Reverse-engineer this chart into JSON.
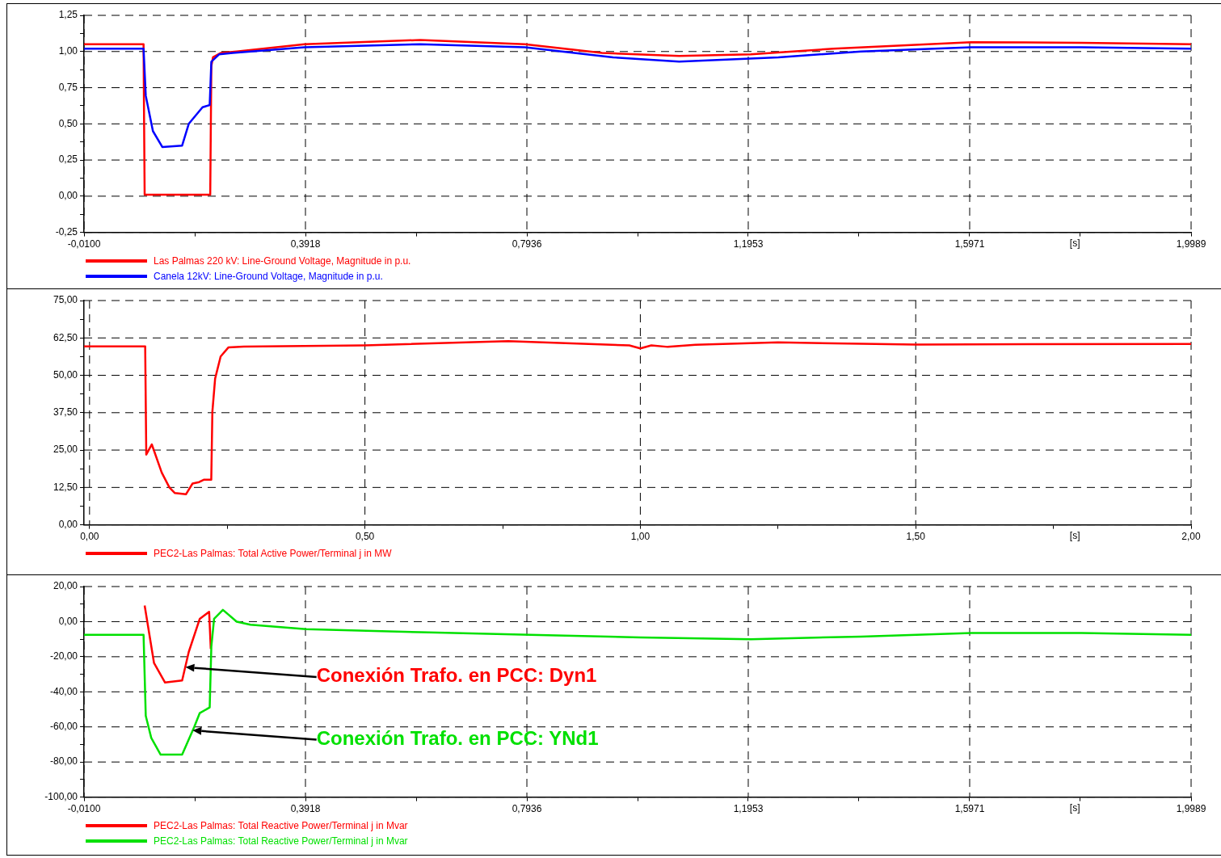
{
  "chart_data": [
    {
      "type": "line",
      "xlabel": "[s]",
      "xlim": [
        -0.01,
        1.9989
      ],
      "xticks": [
        {
          "value": -0.01,
          "label": "-0,0100"
        },
        {
          "value": 0.1909,
          "label": null
        },
        {
          "value": 0.3918,
          "label": "0,3918"
        },
        {
          "value": 0.5927,
          "label": null
        },
        {
          "value": 0.7936,
          "label": "0,7936"
        },
        {
          "value": 0.9945,
          "label": null
        },
        {
          "value": 1.1953,
          "label": "1,1953"
        },
        {
          "value": 1.3962,
          "label": null
        },
        {
          "value": 1.5971,
          "label": "1,5971"
        },
        {
          "value": 1.798,
          "label": null
        },
        {
          "value": 1.9989,
          "label": "1,9989"
        }
      ],
      "ylim": [
        -0.25,
        1.25
      ],
      "yticks": [
        {
          "value": -0.25,
          "label": "-0,25"
        },
        {
          "value": -0.125,
          "label": null
        },
        {
          "value": 0,
          "label": "0,00"
        },
        {
          "value": 0.125,
          "label": null
        },
        {
          "value": 0.25,
          "label": "0,25"
        },
        {
          "value": 0.375,
          "label": null
        },
        {
          "value": 0.5,
          "label": "0,50"
        },
        {
          "value": 0.625,
          "label": null
        },
        {
          "value": 0.75,
          "label": "0,75"
        },
        {
          "value": 0.875,
          "label": null
        },
        {
          "value": 1,
          "label": "1,00"
        },
        {
          "value": 1.125,
          "label": null
        },
        {
          "value": 1.25,
          "label": "1,25"
        }
      ],
      "grid": true,
      "legend": "bottom left",
      "marker": "none",
      "line_style": "solid",
      "series": [
        {
          "name": "Las Palmas 220 kV: Line-Ground Voltage, Magnitude in p.u.",
          "color": "#ff0000",
          "x": [
            -0.01,
            0.098,
            0.099,
            0.1,
            0.219,
            0.221,
            0.224,
            0.238,
            0.267,
            0.39,
            0.6,
            0.79,
            0.93,
            1.07,
            1.2,
            1.35,
            1.6,
            1.8,
            1.9989
          ],
          "values": [
            1.05,
            1.05,
            0.5,
            0.01,
            0.01,
            0.9,
            0.96,
            0.99,
            1.0,
            1.05,
            1.08,
            1.05,
            0.99,
            0.97,
            0.98,
            1.02,
            1.065,
            1.06,
            1.05
          ]
        },
        {
          "name": "Canela 12kV: Line-Ground Voltage, Magnitude in p.u.",
          "color": "#0000ff",
          "x": [
            -0.01,
            0.098,
            0.102,
            0.115,
            0.132,
            0.168,
            0.18,
            0.205,
            0.218,
            0.221,
            0.235,
            0.26,
            0.39,
            0.6,
            0.79,
            0.95,
            1.07,
            1.25,
            1.4,
            1.6,
            1.8,
            1.9989
          ],
          "values": [
            1.02,
            1.02,
            0.695,
            0.45,
            0.34,
            0.35,
            0.5,
            0.615,
            0.63,
            0.93,
            0.98,
            0.99,
            1.03,
            1.05,
            1.03,
            0.96,
            0.93,
            0.96,
            1.0,
            1.03,
            1.03,
            1.02
          ]
        }
      ]
    },
    {
      "type": "line",
      "xlabel": "[s]",
      "xlim": [
        -0.01,
        2.0
      ],
      "xticks": [
        {
          "value": 0,
          "label": "0,00"
        },
        {
          "value": 0.25,
          "label": null
        },
        {
          "value": 0.5,
          "label": "0,50"
        },
        {
          "value": 0.75,
          "label": null
        },
        {
          "value": 1,
          "label": "1,00"
        },
        {
          "value": 1.25,
          "label": null
        },
        {
          "value": 1.5,
          "label": "1,50"
        },
        {
          "value": 1.75,
          "label": null
        },
        {
          "value": 2,
          "label": "2,00"
        }
      ],
      "ylim": [
        0,
        75
      ],
      "yticks": [
        {
          "value": 0,
          "label": "0,00"
        },
        {
          "value": 6.25,
          "label": null
        },
        {
          "value": 12.5,
          "label": "12,50"
        },
        {
          "value": 18.75,
          "label": null
        },
        {
          "value": 25,
          "label": "25,00"
        },
        {
          "value": 31.25,
          "label": null
        },
        {
          "value": 37.5,
          "label": "37,50"
        },
        {
          "value": 43.75,
          "label": null
        },
        {
          "value": 50,
          "label": "50,00"
        },
        {
          "value": 56.25,
          "label": null
        },
        {
          "value": 62.5,
          "label": "62,50"
        },
        {
          "value": 68.75,
          "label": null
        },
        {
          "value": 75,
          "label": "75,00"
        }
      ],
      "grid": true,
      "legend": "bottom left",
      "marker": "none",
      "line_style": "solid",
      "series": [
        {
          "name": "PEC2-Las Palmas: Total Active Power/Terminal j in MW",
          "color": "#ff0000",
          "x": [
            -0.01,
            0.101,
            0.103,
            0.113,
            0.131,
            0.145,
            0.155,
            0.175,
            0.187,
            0.199,
            0.208,
            0.221,
            0.223,
            0.228,
            0.238,
            0.252,
            0.28,
            0.5,
            0.76,
            0.98,
            1.0,
            1.02,
            1.05,
            1.1,
            1.25,
            1.5,
            2.0
          ],
          "values": [
            59.7,
            59.7,
            23.5,
            26.9,
            17.5,
            12.5,
            10.6,
            10.2,
            13.8,
            14.3,
            15.1,
            15.1,
            37.8,
            48.9,
            56.3,
            59.3,
            59.6,
            60,
            61.4,
            60,
            59,
            60,
            59.5,
            60.2,
            61,
            60.3,
            60.5
          ]
        }
      ]
    },
    {
      "type": "line",
      "xlabel": "[s]",
      "xlim": [
        -0.01,
        1.9989
      ],
      "xticks": [
        {
          "value": -0.01,
          "label": "-0,0100"
        },
        {
          "value": 0.1909,
          "label": null
        },
        {
          "value": 0.3918,
          "label": "0,3918"
        },
        {
          "value": 0.5927,
          "label": null
        },
        {
          "value": 0.7936,
          "label": "0,7936"
        },
        {
          "value": 0.9945,
          "label": null
        },
        {
          "value": 1.1953,
          "label": "1,1953"
        },
        {
          "value": 1.3962,
          "label": null
        },
        {
          "value": 1.5971,
          "label": "1,5971"
        },
        {
          "value": 1.798,
          "label": null
        },
        {
          "value": 1.9989,
          "label": "1,9989"
        }
      ],
      "ylim": [
        -100,
        20
      ],
      "yticks": [
        {
          "value": -100,
          "label": "-100,00"
        },
        {
          "value": -90,
          "label": null
        },
        {
          "value": -80,
          "label": "-80,00"
        },
        {
          "value": -70,
          "label": null
        },
        {
          "value": -60,
          "label": "-60,00"
        },
        {
          "value": -50,
          "label": null
        },
        {
          "value": -40,
          "label": "-40,00"
        },
        {
          "value": -30,
          "label": null
        },
        {
          "value": -20,
          "label": "-20,00"
        },
        {
          "value": -10,
          "label": null
        },
        {
          "value": 0,
          "label": "0,00"
        },
        {
          "value": 10,
          "label": null
        },
        {
          "value": 20,
          "label": "20,00"
        }
      ],
      "grid": true,
      "legend": "bottom left",
      "marker": "none",
      "line_style": "solid",
      "annotations": [
        "Conexión Trafo. en PCC: Dyn1",
        "Conexión Trafo. en PCC: YNd1"
      ],
      "series": [
        {
          "name": "PEC2-Las Palmas: Total Reactive Power/Terminal j in Mvar",
          "color": "#ff0000",
          "x": [
            0.1,
            0.117,
            0.137,
            0.168,
            0.18,
            0.2,
            0.217,
            0.22
          ],
          "values": [
            9.2,
            -23.6,
            -34.7,
            -33.5,
            -17.3,
            1.6,
            5.6,
            -15.6
          ]
        },
        {
          "name": "PEC2-Las Palmas: Total Reactive Power/Terminal j in Mvar",
          "color": "#00e000",
          "x": [
            -0.01,
            0.098,
            0.102,
            0.112,
            0.129,
            0.168,
            0.19,
            0.2,
            0.218,
            0.221,
            0.226,
            0.242,
            0.267,
            0.292,
            0.393,
            0.6,
            0.8,
            1.0,
            1.2,
            1.4,
            1.6,
            1.8,
            1.9989
          ],
          "values": [
            -7.5,
            -7.5,
            -53.7,
            -66.3,
            -75.8,
            -75.8,
            -60,
            -52.1,
            -48.9,
            -14.2,
            1.6,
            6.7,
            0,
            -1.8,
            -4.3,
            -6,
            -7.5,
            -9,
            -10,
            -8.5,
            -6.5,
            -6.5,
            -7.5
          ]
        }
      ]
    }
  ]
}
